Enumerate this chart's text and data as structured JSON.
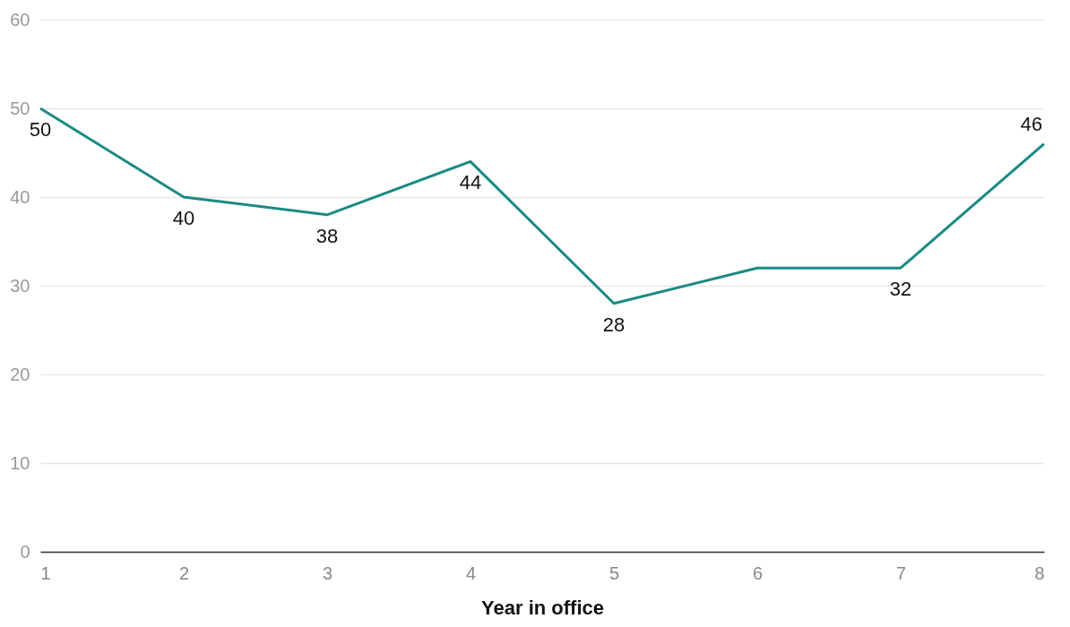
{
  "chart_data": {
    "type": "line",
    "xlabel": "Year in office",
    "x": [
      1,
      2,
      3,
      4,
      5,
      6,
      7,
      8
    ],
    "series": [
      {
        "color": "#1a8a84",
        "values": [
          50,
          40,
          38,
          44,
          28,
          32,
          32,
          46
        ],
        "value_labels": [
          "50",
          "40",
          "38",
          "44",
          "28",
          null,
          "32",
          "46"
        ]
      }
    ],
    "xlim": [
      1,
      8
    ],
    "xticks": [
      1,
      2,
      3,
      4,
      5,
      6,
      7,
      8
    ],
    "ylim": [
      0,
      60
    ],
    "yticks": [
      0,
      10,
      20,
      30,
      40,
      50,
      60
    ],
    "grid": "y",
    "marker": "none",
    "line_style": "solid",
    "legend": false
  }
}
